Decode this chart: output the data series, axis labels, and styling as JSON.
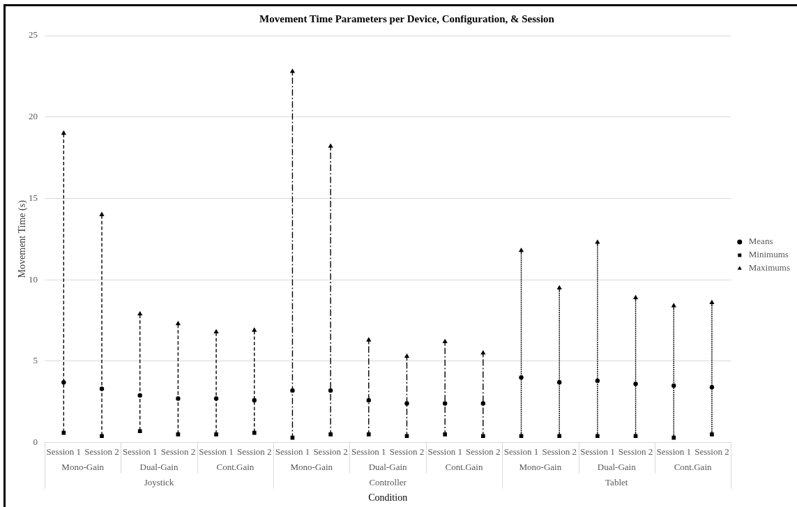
{
  "chart_data": {
    "type": "scatter",
    "title": "Movement Time Parameters per Device, Configuration, & Session",
    "xlabel": "Condition",
    "ylabel": "Movement Time (s)",
    "categories": [
      "Session 1",
      "Session 2",
      "Session 1",
      "Session 2",
      "Session 1",
      "Session 2",
      "Session 1",
      "Session 2",
      "Session 1",
      "Session 2",
      "Session 1",
      "Session 2",
      "Session 1",
      "Session 2",
      "Session 1",
      "Session 2",
      "Session 1",
      "Session 2"
    ],
    "annotations": [
      "Mono-Gain",
      "Dual-Gain",
      "Cont.Gain",
      "Mono-Gain",
      "Dual-Gain",
      "Cont.Gain",
      "Mono-Gain",
      "Dual-Gain",
      "Cont.Gain",
      "Joystick",
      "Controller",
      "Tablet"
    ],
    "series": [
      {
        "name": "Means",
        "color": "#000000",
        "marker": "circle",
        "values": [
          3.7,
          3.3,
          2.9,
          2.7,
          2.7,
          2.6,
          3.2,
          3.2,
          2.6,
          2.4,
          2.4,
          2.4,
          4.0,
          3.7,
          3.8,
          3.6,
          3.5,
          3.4
        ],
        "errors": [
          [
            0.6,
            19.0
          ],
          [
            0.4,
            14.0
          ],
          [
            0.7,
            7.9
          ],
          [
            0.5,
            7.3
          ],
          [
            0.5,
            6.8
          ],
          [
            0.6,
            6.9
          ],
          [
            0.3,
            22.8
          ],
          [
            0.5,
            18.2
          ],
          [
            0.5,
            6.3
          ],
          [
            0.4,
            5.3
          ],
          [
            0.5,
            6.2
          ],
          [
            0.4,
            5.5
          ],
          [
            0.4,
            11.8
          ],
          [
            0.4,
            9.5
          ],
          [
            0.4,
            12.3
          ],
          [
            0.4,
            8.9
          ],
          [
            0.3,
            8.4
          ],
          [
            0.5,
            8.6
          ]
        ]
      },
      {
        "name": "Minimums",
        "color": "#000000",
        "marker": "square",
        "values": [
          0.6,
          0.4,
          0.7,
          0.5,
          0.5,
          0.6,
          0.3,
          0.5,
          0.5,
          0.4,
          0.5,
          0.4,
          0.4,
          0.4,
          0.4,
          0.4,
          0.3,
          0.5
        ]
      },
      {
        "name": "Maximums",
        "color": "#000000",
        "marker": "triangle",
        "values": [
          19.0,
          14.0,
          7.9,
          7.3,
          6.8,
          6.9,
          22.8,
          18.2,
          6.3,
          5.3,
          6.2,
          5.5,
          11.8,
          9.5,
          12.3,
          8.9,
          8.4,
          8.6
        ]
      }
    ],
    "ylim": [
      0,
      25
    ],
    "yticks": [
      0,
      5,
      10,
      15,
      20,
      25
    ],
    "grid": "y",
    "legend": "right"
  }
}
